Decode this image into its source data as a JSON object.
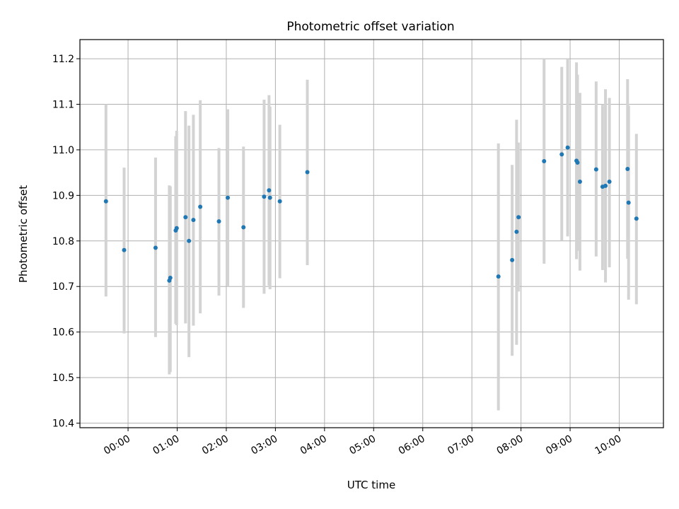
{
  "chart_data": {
    "type": "scatter",
    "title": "Photometric offset variation",
    "xlabel": "UTC time",
    "ylabel": "Photometric offset",
    "x_unit": "hours since 00:00 UTC",
    "xlim": [
      -0.98,
      10.9
    ],
    "ylim": [
      10.39,
      11.242
    ],
    "grid": true,
    "x_ticks": [
      {
        "value": 0,
        "label": "00:00"
      },
      {
        "value": 1,
        "label": "01:00"
      },
      {
        "value": 2,
        "label": "02:00"
      },
      {
        "value": 3,
        "label": "03:00"
      },
      {
        "value": 4,
        "label": "04:00"
      },
      {
        "value": 5,
        "label": "05:00"
      },
      {
        "value": 6,
        "label": "06:00"
      },
      {
        "value": 7,
        "label": "07:00"
      },
      {
        "value": 8,
        "label": "08:00"
      },
      {
        "value": 9,
        "label": "09:00"
      },
      {
        "value": 10,
        "label": "10:00"
      }
    ],
    "y_ticks": [
      {
        "value": 10.4,
        "label": "10.4"
      },
      {
        "value": 10.5,
        "label": "10.5"
      },
      {
        "value": 10.6,
        "label": "10.6"
      },
      {
        "value": 10.7,
        "label": "10.7"
      },
      {
        "value": 10.8,
        "label": "10.8"
      },
      {
        "value": 10.9,
        "label": "10.9"
      },
      {
        "value": 11.0,
        "label": "11.0"
      },
      {
        "value": 11.1,
        "label": "11.1"
      },
      {
        "value": 11.2,
        "label": "11.2"
      }
    ],
    "series": [
      {
        "marker_color": "#1f77b4",
        "errorbar_color": "#d3d3d3",
        "points": [
          {
            "x": -0.45,
            "y": 10.887,
            "lo": 10.678,
            "hi": 11.1
          },
          {
            "x": -0.08,
            "y": 10.78,
            "lo": 10.597,
            "hi": 10.961
          },
          {
            "x": 0.56,
            "y": 10.785,
            "lo": 10.589,
            "hi": 10.983
          },
          {
            "x": 0.84,
            "y": 10.713,
            "lo": 10.507,
            "hi": 10.922
          },
          {
            "x": 0.86,
            "y": 10.719,
            "lo": 10.512,
            "hi": 10.92
          },
          {
            "x": 0.97,
            "y": 10.823,
            "lo": 10.618,
            "hi": 11.03
          },
          {
            "x": 0.99,
            "y": 10.828,
            "lo": 10.615,
            "hi": 11.042
          },
          {
            "x": 1.17,
            "y": 10.852,
            "lo": 10.619,
            "hi": 11.085
          },
          {
            "x": 1.24,
            "y": 10.8,
            "lo": 10.545,
            "hi": 11.053
          },
          {
            "x": 1.33,
            "y": 10.846,
            "lo": 10.614,
            "hi": 11.077
          },
          {
            "x": 1.47,
            "y": 10.875,
            "lo": 10.641,
            "hi": 11.109
          },
          {
            "x": 1.85,
            "y": 10.843,
            "lo": 10.68,
            "hi": 11.004
          },
          {
            "x": 2.03,
            "y": 10.895,
            "lo": 10.7,
            "hi": 11.089
          },
          {
            "x": 2.35,
            "y": 10.83,
            "lo": 10.653,
            "hi": 11.007
          },
          {
            "x": 2.77,
            "y": 10.897,
            "lo": 10.684,
            "hi": 11.11
          },
          {
            "x": 2.87,
            "y": 10.911,
            "lo": 10.702,
            "hi": 11.12
          },
          {
            "x": 2.89,
            "y": 10.895,
            "lo": 10.694,
            "hi": 11.095
          },
          {
            "x": 3.09,
            "y": 10.887,
            "lo": 10.718,
            "hi": 11.055
          },
          {
            "x": 3.65,
            "y": 10.951,
            "lo": 10.747,
            "hi": 11.154
          },
          {
            "x": 7.54,
            "y": 10.722,
            "lo": 10.428,
            "hi": 11.014
          },
          {
            "x": 7.82,
            "y": 10.758,
            "lo": 10.548,
            "hi": 10.967
          },
          {
            "x": 7.91,
            "y": 10.82,
            "lo": 10.572,
            "hi": 11.066
          },
          {
            "x": 7.95,
            "y": 10.852,
            "lo": 10.689,
            "hi": 11.016
          },
          {
            "x": 8.47,
            "y": 10.975,
            "lo": 10.75,
            "hi": 11.2
          },
          {
            "x": 8.83,
            "y": 10.99,
            "lo": 10.801,
            "hi": 11.182
          },
          {
            "x": 8.95,
            "y": 11.005,
            "lo": 10.81,
            "hi": 11.2
          },
          {
            "x": 9.13,
            "y": 10.976,
            "lo": 10.76,
            "hi": 11.192
          },
          {
            "x": 9.15,
            "y": 10.972,
            "lo": 10.778,
            "hi": 11.165
          },
          {
            "x": 9.2,
            "y": 10.93,
            "lo": 10.735,
            "hi": 11.125
          },
          {
            "x": 9.53,
            "y": 10.957,
            "lo": 10.766,
            "hi": 11.15
          },
          {
            "x": 9.66,
            "y": 10.919,
            "lo": 10.736,
            "hi": 11.1
          },
          {
            "x": 9.72,
            "y": 10.921,
            "lo": 10.709,
            "hi": 11.133
          },
          {
            "x": 9.8,
            "y": 10.93,
            "lo": 10.742,
            "hi": 11.114
          },
          {
            "x": 10.17,
            "y": 10.958,
            "lo": 10.761,
            "hi": 11.155
          },
          {
            "x": 10.19,
            "y": 10.884,
            "lo": 10.671,
            "hi": 11.097
          },
          {
            "x": 10.35,
            "y": 10.849,
            "lo": 10.661,
            "hi": 11.035
          }
        ]
      }
    ]
  }
}
